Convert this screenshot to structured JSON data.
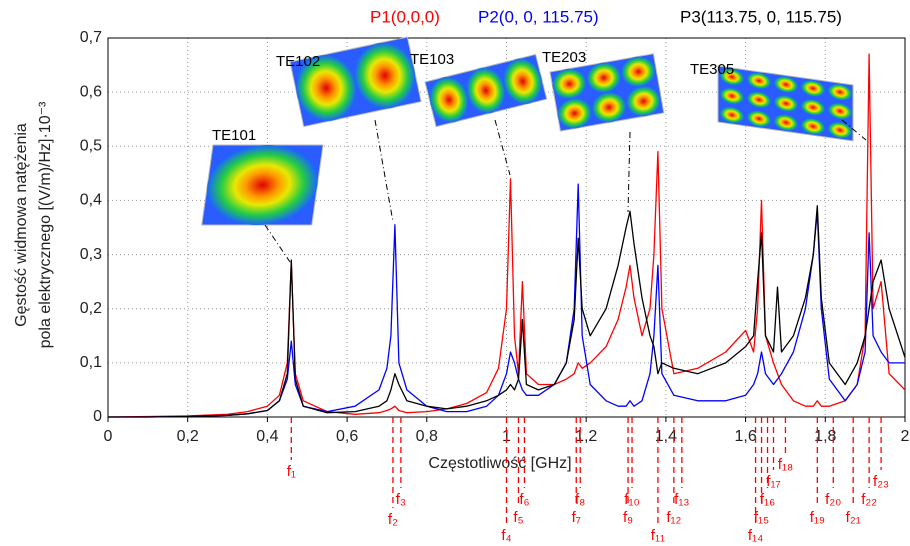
{
  "chart_data": {
    "type": "line",
    "x_label": "Częstotliwość [GHz]",
    "y_label": [
      "Gęstość widmowa natężenia",
      "pola elektrycznego  [(V/m)/Hz]·10⁻³"
    ],
    "xlim": [
      0,
      2
    ],
    "ylim": [
      0,
      0.7
    ],
    "xticks": [
      0,
      {
        "value": 0.2,
        "label": "0,2"
      },
      {
        "value": 0.4,
        "label": "0,4"
      },
      {
        "value": 0.6,
        "label": "0,6"
      },
      {
        "value": 0.8,
        "label": "0,8"
      },
      1,
      {
        "value": 1.2,
        "label": "1,2"
      },
      {
        "value": 1.4,
        "label": "1,4"
      },
      {
        "value": 1.6,
        "label": "1,6"
      },
      {
        "value": 1.8,
        "label": "1,8"
      },
      2
    ],
    "yticks": [
      0,
      {
        "value": 0.1,
        "label": "0,1"
      },
      {
        "value": 0.2,
        "label": "0,2"
      },
      {
        "value": 0.3,
        "label": "0,3"
      },
      {
        "value": 0.4,
        "label": "0,4"
      },
      {
        "value": 0.5,
        "label": "0,5"
      },
      {
        "value": 0.6,
        "label": "0,6"
      },
      {
        "value": 0.7,
        "label": "0,7"
      }
    ],
    "grid": true,
    "x": [
      0,
      0.1,
      0.2,
      0.3,
      0.35,
      0.4,
      0.43,
      0.45,
      0.46,
      0.47,
      0.49,
      0.55,
      0.62,
      0.68,
      0.7,
      0.71,
      0.72,
      0.73,
      0.75,
      0.8,
      0.85,
      0.9,
      0.95,
      0.98,
      1.0,
      1.01,
      1.02,
      1.03,
      1.04,
      1.05,
      1.08,
      1.12,
      1.15,
      1.17,
      1.18,
      1.19,
      1.21,
      1.25,
      1.28,
      1.3,
      1.31,
      1.32,
      1.34,
      1.36,
      1.37,
      1.38,
      1.39,
      1.42,
      1.48,
      1.55,
      1.6,
      1.62,
      1.63,
      1.64,
      1.65,
      1.67,
      1.68,
      1.69,
      1.72,
      1.75,
      1.77,
      1.78,
      1.79,
      1.81,
      1.85,
      1.88,
      1.9,
      1.91,
      1.92,
      1.94,
      1.96,
      2.0
    ],
    "series": [
      {
        "name": "P1(0,0,0)",
        "color": "#ff0000",
        "values": [
          0,
          0.001,
          0.002,
          0.005,
          0.01,
          0.02,
          0.04,
          0.1,
          0.285,
          0.08,
          0.03,
          0.01,
          0.005,
          0.008,
          0.012,
          0.015,
          0.02,
          0.012,
          0.008,
          0.01,
          0.015,
          0.025,
          0.045,
          0.09,
          0.2,
          0.44,
          0.15,
          0.08,
          0.25,
          0.08,
          0.06,
          0.06,
          0.07,
          0.08,
          0.1,
          0.09,
          0.1,
          0.13,
          0.18,
          0.24,
          0.28,
          0.22,
          0.15,
          0.2,
          0.3,
          0.49,
          0.2,
          0.08,
          0.09,
          0.12,
          0.16,
          0.12,
          0.2,
          0.4,
          0.15,
          0.1,
          0.08,
          0.06,
          0.03,
          0.02,
          0.02,
          0.03,
          0.02,
          0.02,
          0.03,
          0.06,
          0.15,
          0.67,
          0.2,
          0.25,
          0.08,
          0.05
        ]
      },
      {
        "name": "P2(0, 0, 115.75)",
        "color": "#0000ff",
        "values": [
          0,
          0,
          0.001,
          0.003,
          0.006,
          0.012,
          0.03,
          0.07,
          0.14,
          0.06,
          0.02,
          0.01,
          0.02,
          0.05,
          0.09,
          0.15,
          0.355,
          0.1,
          0.05,
          0.02,
          0.01,
          0.01,
          0.02,
          0.04,
          0.08,
          0.12,
          0.1,
          0.07,
          0.05,
          0.04,
          0.04,
          0.06,
          0.1,
          0.2,
          0.43,
          0.15,
          0.06,
          0.03,
          0.02,
          0.02,
          0.03,
          0.02,
          0.03,
          0.08,
          0.15,
          0.28,
          0.08,
          0.04,
          0.03,
          0.03,
          0.04,
          0.06,
          0.08,
          0.12,
          0.08,
          0.06,
          0.07,
          0.08,
          0.12,
          0.2,
          0.3,
          0.38,
          0.2,
          0.07,
          0.03,
          0.06,
          0.12,
          0.34,
          0.15,
          0.12,
          0.1,
          0.1
        ]
      },
      {
        "name": "P3(113.75, 0, 115.75)",
        "color": "#000000",
        "values": [
          0,
          0,
          0.001,
          0.003,
          0.006,
          0.012,
          0.03,
          0.08,
          0.29,
          0.07,
          0.02,
          0.008,
          0.01,
          0.02,
          0.03,
          0.05,
          0.08,
          0.06,
          0.03,
          0.02,
          0.015,
          0.02,
          0.03,
          0.04,
          0.05,
          0.06,
          0.05,
          0.07,
          0.18,
          0.06,
          0.05,
          0.06,
          0.1,
          0.18,
          0.33,
          0.2,
          0.15,
          0.2,
          0.28,
          0.35,
          0.38,
          0.32,
          0.22,
          0.15,
          0.13,
          0.08,
          0.1,
          0.09,
          0.08,
          0.1,
          0.13,
          0.15,
          0.25,
          0.34,
          0.15,
          0.12,
          0.24,
          0.12,
          0.15,
          0.22,
          0.3,
          0.39,
          0.22,
          0.1,
          0.06,
          0.1,
          0.15,
          0.2,
          0.25,
          0.29,
          0.2,
          0.11
        ]
      }
    ],
    "modes": [
      "TE101",
      "TE102",
      "TE103",
      "TE203",
      "TE305"
    ],
    "frequency_markers": [
      {
        "label": "f₁",
        "x": 0.46
      },
      {
        "label": "f₂",
        "x": 0.715
      },
      {
        "label": "f₃",
        "x": 0.735
      },
      {
        "label": "f₄",
        "x": 1.0
      },
      {
        "label": "f₅",
        "x": 1.03
      },
      {
        "label": "f₆",
        "x": 1.045
      },
      {
        "label": "f₇",
        "x": 1.175
      },
      {
        "label": "f₈",
        "x": 1.185
      },
      {
        "label": "f₉",
        "x": 1.305
      },
      {
        "label": "f₁₀",
        "x": 1.315
      },
      {
        "label": "f₁₁",
        "x": 1.38
      },
      {
        "label": "f₁₂",
        "x": 1.42
      },
      {
        "label": "f₁₃",
        "x": 1.44
      },
      {
        "label": "f₁₄",
        "x": 1.625
      },
      {
        "label": "f₁₅",
        "x": 1.64
      },
      {
        "label": "f₁₆",
        "x": 1.655
      },
      {
        "label": "f₁₇",
        "x": 1.67
      },
      {
        "label": "f₁₈",
        "x": 1.7
      },
      {
        "label": "f₁₉",
        "x": 1.78
      },
      {
        "label": "f₂₀",
        "x": 1.82
      },
      {
        "label": "f₂₁",
        "x": 1.87
      },
      {
        "label": "f₂₂",
        "x": 1.91
      },
      {
        "label": "f₂₃",
        "x": 1.94
      }
    ]
  }
}
